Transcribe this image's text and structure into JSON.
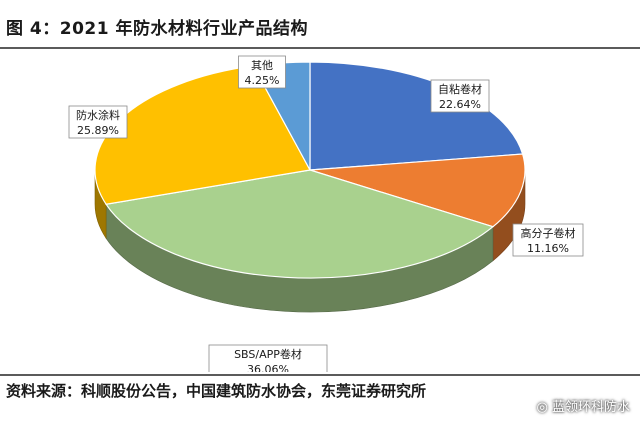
{
  "header": {
    "title": "图 4：2021 年防水材料行业产品结构"
  },
  "footer": {
    "source": "资料来源：科顺股份公告，中国建筑防水协会，东莞证券研究所",
    "watermark": "◎ 蓝领环科防水"
  },
  "chart_data": {
    "type": "pie",
    "title": "",
    "style": "3d",
    "slices": [
      {
        "name": "自粘卷材",
        "value": 22.64,
        "label": "22.64%",
        "color": "#4472c4"
      },
      {
        "name": "高分子卷材",
        "value": 11.16,
        "label": "11.16%",
        "color": "#ed7d31"
      },
      {
        "name": "SBS/APP卷材",
        "value": 36.06,
        "label": "36.06%",
        "color": "#a9d18e"
      },
      {
        "name": "防水涂料",
        "value": 25.89,
        "label": "25.89%",
        "color": "#ffc000"
      },
      {
        "name": "其他",
        "value": 4.25,
        "label": "4.25%",
        "color": "#5b9bd5"
      }
    ]
  }
}
